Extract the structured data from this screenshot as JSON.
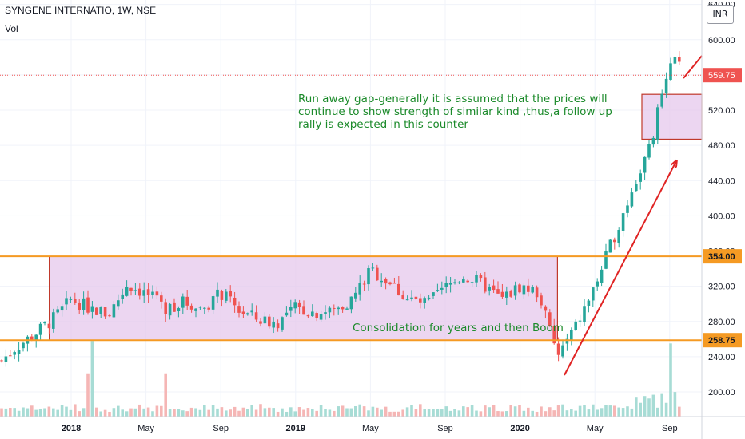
{
  "header": {
    "symbol_title": "SYNGENE INTERNATIO, 1W, NSE",
    "volume_label": "Vol",
    "currency": "INR"
  },
  "annotations": {
    "gap_note": "Run away gap-generally it is assumed that the prices will continue to show strength of similar kind ,thus,a follow up rally is expected in this counter",
    "consolidation_note": "Consolidation for years and then Boom"
  },
  "colors": {
    "up": "#26a69a",
    "down": "#ef5350",
    "up_volume": "#a7dcd5",
    "down_volume": "#f5b6b5",
    "range_box_fill": "#e5c8ec",
    "range_box_stroke": "#c0392b",
    "level_line": "#f59a23",
    "annotation_text": "#1b8a2a",
    "arrow": "#e02424",
    "last_price": "#ef5350"
  },
  "chart_data": {
    "type": "candlestick",
    "title": "SYNGENE INTERNATIO, 1W, NSE",
    "x_tick_labels": [
      "2018",
      "May",
      "Sep",
      "2019",
      "May",
      "Sep",
      "2020",
      "May",
      "Sep"
    ],
    "y_tick_labels": [
      "200.00",
      "240.00",
      "280.00",
      "320.00",
      "360.00",
      "400.00",
      "440.00",
      "480.00",
      "520.00",
      "560.00",
      "600.00",
      "640.00"
    ],
    "ylim": [
      185,
      645
    ],
    "x_range": [
      "2017-09",
      "2020-10"
    ],
    "horizontal_levels": [
      {
        "label": "354.00",
        "value": 354.0
      },
      {
        "label": "258.75",
        "value": 258.75
      }
    ],
    "last_price": {
      "label": "559.75",
      "value": 559.75
    },
    "consolidation_range": {
      "from": "2017-12",
      "to": "2020-03",
      "low": 258.75,
      "high": 354.0
    },
    "gap_range": {
      "from": "2020-08",
      "to": "2020-11",
      "low": 487,
      "high": 538
    },
    "weekly_closes": [
      {
        "date": "2017-09",
        "close": 230
      },
      {
        "date": "2017-10",
        "close": 250
      },
      {
        "date": "2017-11",
        "close": 265
      },
      {
        "date": "2017-12",
        "close": 282
      },
      {
        "date": "2018-01",
        "close": 305
      },
      {
        "date": "2018-02",
        "close": 295
      },
      {
        "date": "2018-03",
        "close": 288
      },
      {
        "date": "2018-04",
        "close": 322
      },
      {
        "date": "2018-05",
        "close": 312
      },
      {
        "date": "2018-06",
        "close": 295
      },
      {
        "date": "2018-07",
        "close": 302
      },
      {
        "date": "2018-08",
        "close": 295
      },
      {
        "date": "2018-09",
        "close": 312
      },
      {
        "date": "2018-10",
        "close": 292
      },
      {
        "date": "2018-11",
        "close": 282
      },
      {
        "date": "2018-12",
        "close": 278
      },
      {
        "date": "2019-01",
        "close": 296
      },
      {
        "date": "2019-02",
        "close": 290
      },
      {
        "date": "2019-03",
        "close": 292
      },
      {
        "date": "2019-04",
        "close": 305
      },
      {
        "date": "2019-05",
        "close": 338
      },
      {
        "date": "2019-06",
        "close": 325
      },
      {
        "date": "2019-07",
        "close": 305
      },
      {
        "date": "2019-08",
        "close": 300
      },
      {
        "date": "2019-09",
        "close": 318
      },
      {
        "date": "2019-10",
        "close": 332
      },
      {
        "date": "2019-11",
        "close": 322
      },
      {
        "date": "2019-12",
        "close": 305
      },
      {
        "date": "2020-01",
        "close": 320
      },
      {
        "date": "2020-02",
        "close": 312
      },
      {
        "date": "2020-03",
        "close": 240
      },
      {
        "date": "2020-04",
        "close": 275
      },
      {
        "date": "2020-05",
        "close": 320
      },
      {
        "date": "2020-06",
        "close": 375
      },
      {
        "date": "2020-07",
        "close": 430
      },
      {
        "date": "2020-08",
        "close": 480
      },
      {
        "date": "2020-09",
        "close": 580
      },
      {
        "date": "2020-10",
        "close": 560
      }
    ],
    "volume_spikes": [
      "2018-02",
      "2018-06",
      "2020-09"
    ]
  }
}
